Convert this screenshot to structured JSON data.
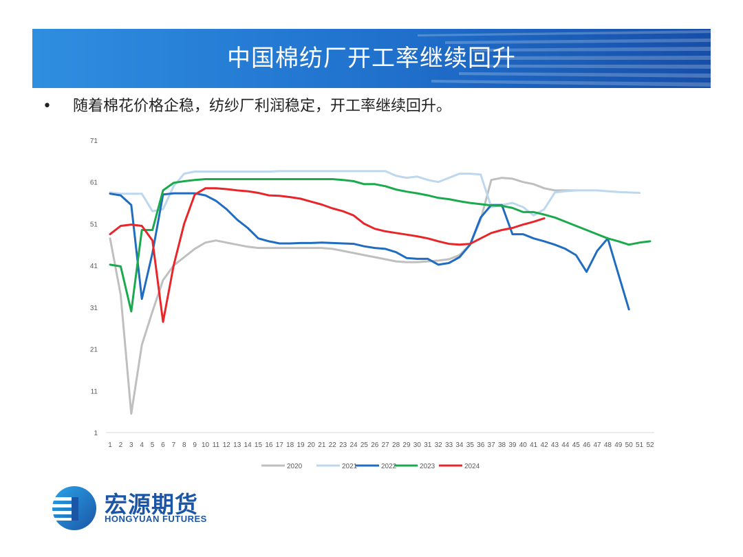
{
  "slide": {
    "title": "中国棉纺厂开工率继续回升",
    "bullet": "随着棉花价格企稳，纺纱厂利润稳定，开工率继续回升。"
  },
  "logo": {
    "name_cn": "宏源期货",
    "name_en": "HONGYUAN FUTURES"
  },
  "colors": {
    "banner": "#1f6fcb",
    "logo": "#1b56a6"
  },
  "chart_data": {
    "type": "line",
    "title": "",
    "xlabel": "",
    "ylabel": "",
    "x": [
      1,
      2,
      3,
      4,
      5,
      6,
      7,
      8,
      9,
      10,
      11,
      12,
      13,
      14,
      15,
      16,
      17,
      18,
      19,
      20,
      21,
      22,
      23,
      24,
      25,
      26,
      27,
      28,
      29,
      30,
      31,
      32,
      33,
      34,
      35,
      36,
      37,
      38,
      39,
      40,
      41,
      42,
      43,
      44,
      45,
      46,
      47,
      48,
      49,
      50,
      51,
      52
    ],
    "yticks": [
      1,
      11,
      21,
      31,
      41,
      51,
      61,
      71
    ],
    "ylim": [
      1,
      71
    ],
    "grid": false,
    "legend_position": "bottom",
    "series": [
      {
        "name": "2020",
        "color": "#bfbfbf",
        "values": [
          47.5,
          34,
          5.5,
          22,
          30,
          37.5,
          41,
          43,
          45,
          46.5,
          47,
          46.5,
          46,
          45.5,
          45.2,
          45.2,
          45.2,
          45.2,
          45.2,
          45.2,
          45.2,
          45,
          44.5,
          44,
          43.5,
          43,
          42.5,
          42,
          41.8,
          41.8,
          42,
          42.2,
          42.5,
          43.5,
          46,
          52,
          61.5,
          62,
          61.8,
          61,
          60.5,
          59.5,
          59,
          59,
          59,
          null,
          null,
          null,
          null,
          null,
          null,
          null
        ]
      },
      {
        "name": "2021",
        "color": "#bdd7ee",
        "values": [
          58.5,
          58.2,
          58.2,
          58.2,
          54,
          54.5,
          60,
          63,
          63.5,
          63.5,
          63.5,
          63.5,
          63.5,
          63.5,
          63.5,
          63.5,
          63.6,
          63.6,
          63.6,
          63.6,
          63.6,
          63.6,
          63.6,
          63.6,
          63.6,
          63.6,
          63.6,
          62.5,
          62,
          62.3,
          61.5,
          61,
          62,
          63,
          63,
          62.8,
          55,
          55.5,
          56,
          55,
          53,
          54.5,
          58.5,
          58.8,
          59,
          59,
          59,
          58.8,
          58.6,
          58.5,
          58.4,
          null
        ]
      },
      {
        "name": "2022",
        "color": "#1f6cc1",
        "values": [
          58.2,
          57.8,
          55.5,
          33,
          44,
          58,
          58.3,
          58.3,
          58.3,
          57.8,
          56.5,
          54.5,
          52,
          50,
          47.5,
          46.8,
          46.3,
          46.3,
          46.4,
          46.4,
          46.5,
          46.4,
          46.3,
          46.2,
          45.6,
          45.2,
          45,
          44.2,
          42.8,
          42.6,
          42.6,
          41.2,
          41.6,
          43,
          46,
          52.5,
          55.5,
          55.5,
          48.5,
          48.5,
          47.5,
          46.8,
          46,
          45,
          43.5,
          39.5,
          44.5,
          47.5,
          39,
          30.5,
          null,
          null
        ]
      },
      {
        "name": "2023",
        "color": "#1aaa4d",
        "values": [
          41.2,
          40.8,
          30,
          49.5,
          49.5,
          59,
          60.8,
          61.2,
          61.5,
          61.7,
          61.7,
          61.7,
          61.7,
          61.7,
          61.7,
          61.7,
          61.7,
          61.7,
          61.7,
          61.7,
          61.7,
          61.7,
          61.5,
          61.2,
          60.5,
          60.5,
          60,
          59.2,
          58.7,
          58.3,
          57.8,
          57.2,
          56.9,
          56.4,
          56,
          55.7,
          55.4,
          55.3,
          54.8,
          53.8,
          53.8,
          53.2,
          52.5,
          51.5,
          50.5,
          49.5,
          48.5,
          47.5,
          46.8,
          46,
          46.5,
          46.8
        ]
      },
      {
        "name": "2024",
        "color": "#e8262a",
        "values": [
          48.5,
          50.5,
          50.8,
          50.5,
          47,
          27.5,
          41,
          51,
          58,
          59.5,
          59.5,
          59.3,
          59,
          58.8,
          58.4,
          57.8,
          57.7,
          57.4,
          57,
          56.3,
          55.6,
          54.7,
          54,
          53,
          51,
          49.8,
          49.2,
          48.8,
          48.4,
          48,
          47.5,
          46.8,
          46.2,
          46,
          46.2,
          47.5,
          48.8,
          49.5,
          50,
          50.8,
          51.5,
          52.3,
          null,
          null,
          null,
          null,
          null,
          null,
          null,
          null,
          null,
          null
        ]
      }
    ]
  }
}
